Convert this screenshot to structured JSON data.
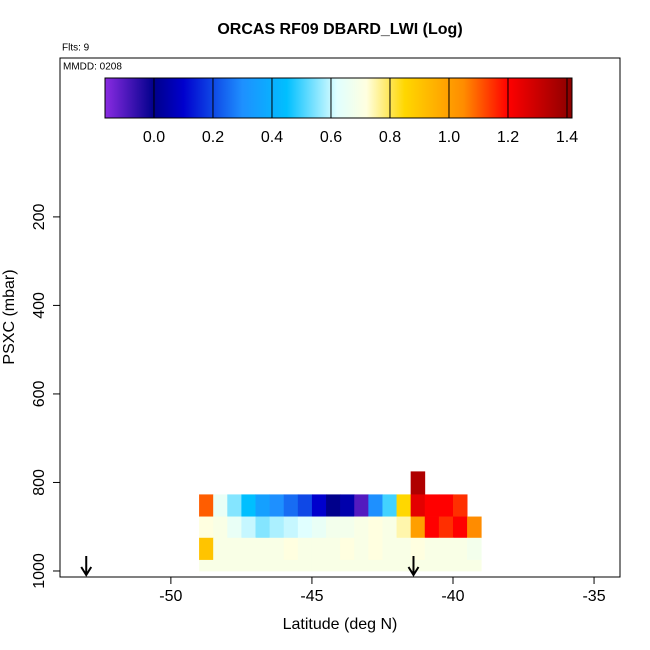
{
  "chart_data": {
    "type": "heatmap",
    "title": "ORCAS RF09 DBARD_LWI (Log)",
    "flights_label": "Flts: 9",
    "date_label": "MMDD: 0208",
    "xlabel": "Latitude (deg N)",
    "ylabel": "PSXC (mbar)",
    "xlim": [
      -53.93,
      -34.08
    ],
    "xticks": [
      -50,
      -45,
      -40,
      -35
    ],
    "ylim": [
      1013.6,
      -159
    ],
    "yticks": [
      200,
      400,
      600,
      800,
      1000
    ],
    "x_bins": [
      -49,
      -48.5,
      -48,
      -47.5,
      -47,
      -46.5,
      -46,
      -45.5,
      -45,
      -44.5,
      -44,
      -43.5,
      -43,
      -42.5,
      -42,
      -41.5,
      -41,
      -40.5,
      -40,
      -39.5,
      -39
    ],
    "y_bins": [
      775,
      827,
      877,
      925,
      975,
      1000
    ],
    "z": [
      [
        null,
        null,
        null,
        null,
        null,
        null,
        null,
        null,
        null,
        null,
        null,
        null,
        null,
        null,
        null,
        1.35,
        null,
        null,
        null,
        null
      ],
      [
        1.1,
        0.65,
        0.55,
        0.45,
        0.35,
        0.3,
        0.25,
        0.2,
        0.1,
        0.0,
        0.05,
        -0.1,
        0.3,
        0.5,
        0.85,
        1.25,
        1.2,
        1.2,
        1.15,
        null
      ],
      [
        0.72,
        0.7,
        0.65,
        0.6,
        0.55,
        0.58,
        0.6,
        0.62,
        0.65,
        0.68,
        0.68,
        0.7,
        0.72,
        0.7,
        0.75,
        1.0,
        1.2,
        1.15,
        1.2,
        1.05
      ],
      [
        0.9,
        0.7,
        0.7,
        0.7,
        0.7,
        0.7,
        0.72,
        0.7,
        0.7,
        0.7,
        0.72,
        0.7,
        0.72,
        0.7,
        0.7,
        0.72,
        0.7,
        0.7,
        0.7,
        0.68
      ],
      [
        0.7,
        0.7,
        0.7,
        0.7,
        0.7,
        0.7,
        0.7,
        0.7,
        0.7,
        0.7,
        0.7,
        0.7,
        0.7,
        0.7,
        0.7,
        0.7,
        0.7,
        0.7,
        0.7,
        0.7
      ]
    ],
    "colorbar_lim": [
      -0.166,
      1.417
    ],
    "colorbar_ticks": [
      {
        "value": 0,
        "label": "0.0"
      },
      0.2,
      0.4,
      0.6,
      0.8,
      {
        "value": 1,
        "label": "1.0"
      },
      1.2,
      1.4
    ],
    "colorscale": [
      [
        -0.166,
        "#8a2be2"
      ],
      [
        0.0,
        "#00008b"
      ],
      [
        0.1,
        "#0000cd"
      ],
      [
        0.3,
        "#1e90ff"
      ],
      [
        0.45,
        "#00bfff"
      ],
      [
        0.62,
        "#e0ffff"
      ],
      [
        0.72,
        "#ffffe0"
      ],
      [
        0.85,
        "#ffd700"
      ],
      [
        1.05,
        "#ff8c00"
      ],
      [
        1.2,
        "#ff0000"
      ],
      [
        1.417,
        "#8b0000"
      ]
    ],
    "arrows": [
      -53.0,
      -41.4
    ]
  }
}
